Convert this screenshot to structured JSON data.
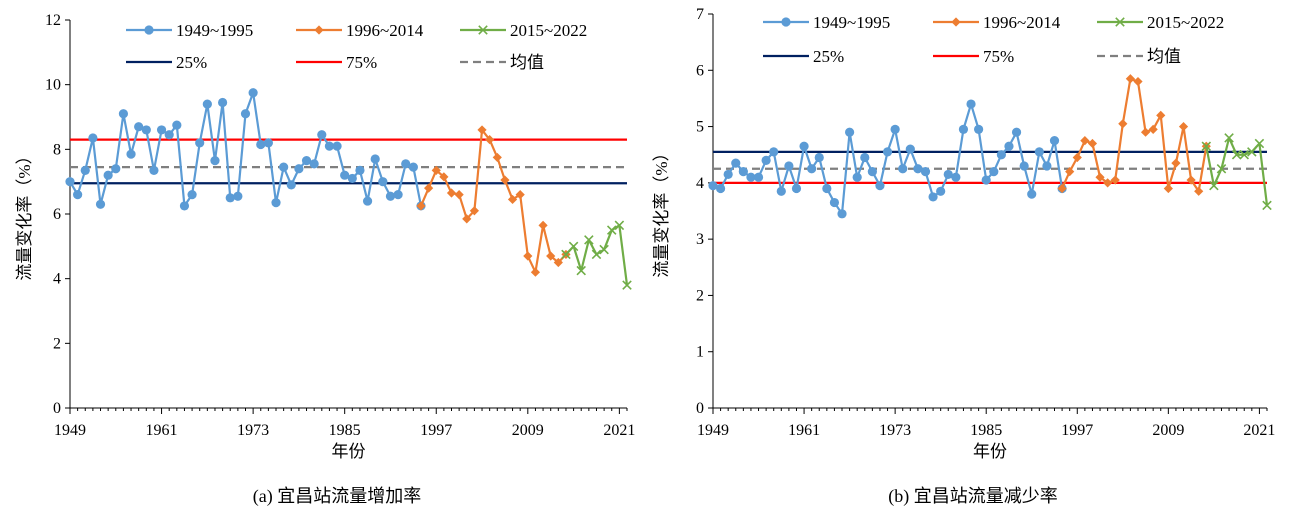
{
  "chart_data": [
    {
      "type": "line",
      "title": "",
      "caption": "(a)  宜昌站流量增加率",
      "xlabel": "年份",
      "ylabel": "流量变化率（%）",
      "xlim": [
        1949,
        2022
      ],
      "ylim": [
        0,
        12
      ],
      "xticks": [
        1949,
        1961,
        1973,
        1985,
        1997,
        2009,
        2021
      ],
      "yticks": [
        0,
        2,
        4,
        6,
        8,
        10,
        12
      ],
      "grid": false,
      "legend_placement": "top",
      "series": [
        {
          "name": "1949~1995",
          "color": "#5b9bd5",
          "marker": "circle",
          "x": [
            1949,
            1950,
            1951,
            1952,
            1953,
            1954,
            1955,
            1956,
            1957,
            1958,
            1959,
            1960,
            1961,
            1962,
            1963,
            1964,
            1965,
            1966,
            1967,
            1968,
            1969,
            1970,
            1971,
            1972,
            1973,
            1974,
            1975,
            1976,
            1977,
            1978,
            1979,
            1980,
            1981,
            1982,
            1983,
            1984,
            1985,
            1986,
            1987,
            1988,
            1989,
            1990,
            1991,
            1992,
            1993,
            1994,
            1995
          ],
          "y": [
            7.0,
            6.6,
            7.35,
            8.35,
            6.3,
            7.2,
            7.4,
            9.1,
            7.85,
            8.7,
            8.6,
            7.35,
            8.6,
            8.45,
            8.75,
            6.25,
            6.6,
            8.2,
            9.4,
            7.65,
            9.45,
            6.5,
            6.55,
            9.1,
            9.75,
            8.15,
            8.2,
            6.35,
            7.45,
            6.9,
            7.4,
            7.65,
            7.55,
            8.45,
            8.1,
            8.1,
            7.2,
            7.1,
            7.35,
            6.4,
            7.7,
            7.0,
            6.55,
            6.6,
            7.55,
            7.45,
            6.25
          ]
        },
        {
          "name": "1996~2014",
          "color": "#ed7d31",
          "marker": "diamond",
          "x": [
            1995,
            1996,
            1997,
            1998,
            1999,
            2000,
            2001,
            2002,
            2003,
            2004,
            2005,
            2006,
            2007,
            2008,
            2009,
            2010,
            2011,
            2012,
            2013,
            2014
          ],
          "y": [
            6.25,
            6.8,
            7.35,
            7.15,
            6.65,
            6.6,
            5.85,
            6.1,
            8.6,
            8.3,
            7.75,
            7.05,
            6.45,
            6.6,
            4.7,
            4.2,
            5.65,
            4.7,
            4.5,
            4.75
          ]
        },
        {
          "name": "2015~2022",
          "color": "#70ad47",
          "marker": "x",
          "x": [
            2014,
            2015,
            2016,
            2017,
            2018,
            2019,
            2020,
            2021,
            2022
          ],
          "y": [
            4.75,
            5.0,
            4.25,
            5.2,
            4.75,
            4.9,
            5.5,
            5.65,
            3.8
          ]
        },
        {
          "name": "25%",
          "color": "#002060",
          "marker": "none",
          "y_constant": 6.95
        },
        {
          "name": "75%",
          "color": "#ff0000",
          "marker": "none",
          "y_constant": 8.3
        },
        {
          "name": "均值",
          "color": "#7f7f7f",
          "marker": "none",
          "dashed": true,
          "y_constant": 7.45
        }
      ]
    },
    {
      "type": "line",
      "title": "",
      "caption": "(b)  宜昌站流量减少率",
      "xlabel": "年份",
      "ylabel": "流量变化率（%）",
      "xlim": [
        1949,
        2022
      ],
      "ylim": [
        0,
        7
      ],
      "xticks": [
        1949,
        1961,
        1973,
        1985,
        1997,
        2009,
        2021
      ],
      "yticks": [
        0,
        1,
        2,
        3,
        4,
        5,
        6,
        7
      ],
      "grid": false,
      "legend_placement": "top",
      "series": [
        {
          "name": "1949~1995",
          "color": "#5b9bd5",
          "marker": "circle",
          "x": [
            1949,
            1950,
            1951,
            1952,
            1953,
            1954,
            1955,
            1956,
            1957,
            1958,
            1959,
            1960,
            1961,
            1962,
            1963,
            1964,
            1965,
            1966,
            1967,
            1968,
            1969,
            1970,
            1971,
            1972,
            1973,
            1974,
            1975,
            1976,
            1977,
            1978,
            1979,
            1980,
            1981,
            1982,
            1983,
            1984,
            1985,
            1986,
            1987,
            1988,
            1989,
            1990,
            1991,
            1992,
            1993,
            1994,
            1995
          ],
          "y": [
            3.95,
            3.9,
            4.15,
            4.35,
            4.2,
            4.1,
            4.1,
            4.4,
            4.55,
            3.85,
            4.3,
            3.9,
            4.65,
            4.25,
            4.45,
            3.9,
            3.65,
            3.45,
            4.9,
            4.1,
            4.45,
            4.2,
            3.95,
            4.55,
            4.95,
            4.25,
            4.6,
            4.25,
            4.2,
            3.75,
            3.85,
            4.15,
            4.1,
            4.95,
            5.4,
            4.95,
            4.05,
            4.2,
            4.5,
            4.65,
            4.9,
            4.3,
            3.8,
            4.55,
            4.3,
            4.75,
            3.9
          ]
        },
        {
          "name": "1996~2014",
          "color": "#ed7d31",
          "marker": "diamond",
          "x": [
            1995,
            1996,
            1997,
            1998,
            1999,
            2000,
            2001,
            2002,
            2003,
            2004,
            2005,
            2006,
            2007,
            2008,
            2009,
            2010,
            2011,
            2012,
            2013,
            2014
          ],
          "y": [
            3.9,
            4.2,
            4.45,
            4.75,
            4.7,
            4.1,
            4.0,
            4.05,
            5.05,
            5.85,
            5.8,
            4.9,
            4.95,
            5.2,
            3.9,
            4.35,
            5.0,
            4.05,
            3.85,
            4.65
          ]
        },
        {
          "name": "2015~2022",
          "color": "#70ad47",
          "marker": "x",
          "x": [
            2014,
            2015,
            2016,
            2017,
            2018,
            2019,
            2020,
            2021,
            2022
          ],
          "y": [
            4.65,
            3.95,
            4.25,
            4.8,
            4.5,
            4.5,
            4.55,
            4.7,
            3.6
          ]
        },
        {
          "name": "25%",
          "color": "#002060",
          "marker": "none",
          "y_constant": 4.55
        },
        {
          "name": "75%",
          "color": "#ff0000",
          "marker": "none",
          "y_constant": 4.0
        },
        {
          "name": "均值",
          "color": "#7f7f7f",
          "marker": "none",
          "dashed": true,
          "y_constant": 4.25
        }
      ]
    }
  ]
}
